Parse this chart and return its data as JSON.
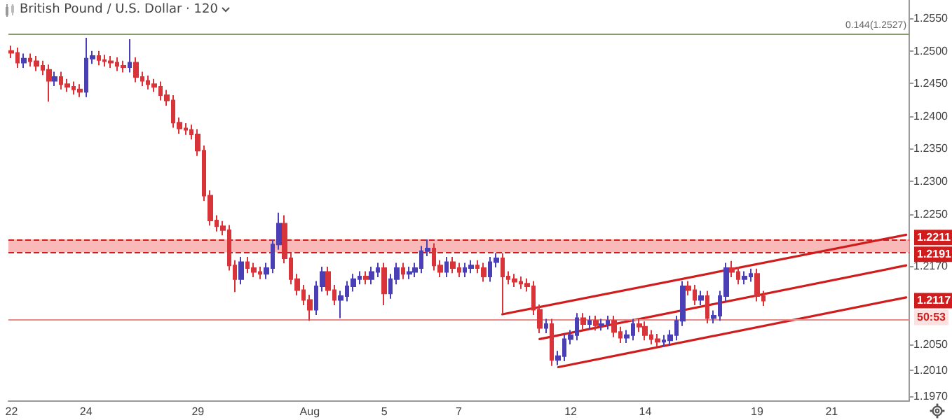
{
  "chart_data": {
    "type": "candlestick",
    "title": "British Pound / U.S. Dollar · 120",
    "categories": [
      "22",
      null,
      null,
      null,
      null,
      null,
      null,
      null,
      null,
      null,
      null,
      null,
      "24",
      null,
      null,
      null,
      null,
      null,
      null,
      null,
      null,
      null,
      null,
      null,
      null,
      null,
      null,
      null,
      null,
      null,
      "29",
      null,
      null,
      null,
      null,
      null,
      null,
      null,
      null,
      null,
      null,
      null,
      null,
      null,
      null,
      null,
      null,
      null,
      "Aug",
      null,
      null,
      null,
      null,
      null,
      null,
      null,
      null,
      null,
      null,
      null,
      "5",
      null,
      null,
      null,
      null,
      null,
      null,
      null,
      null,
      null,
      null,
      null,
      "7",
      null,
      null,
      null,
      null,
      null,
      null,
      null,
      null,
      null,
      null,
      null,
      null,
      null,
      null,
      null,
      null,
      null,
      "12",
      null,
      null,
      null,
      null,
      null,
      null,
      null,
      null,
      null,
      null,
      null,
      "14",
      null,
      null,
      null,
      null,
      null,
      null,
      null,
      null,
      null,
      null,
      null,
      null,
      null,
      null,
      null,
      null,
      null,
      "19",
      null,
      null,
      null,
      null,
      null,
      null,
      null,
      null,
      null,
      null,
      null,
      "21",
      null,
      null,
      null,
      null,
      null,
      null,
      null,
      null,
      null,
      null,
      null,
      null
    ],
    "series": [
      {
        "ohlc": [
          [
            1.25,
            1.2508,
            1.2489,
            1.2497
          ],
          [
            1.2497,
            1.2505,
            1.2474,
            1.2482
          ],
          [
            1.2482,
            1.2496,
            1.2474,
            1.2488
          ],
          [
            1.2488,
            1.2496,
            1.2476,
            1.2484
          ],
          [
            1.2484,
            1.2492,
            1.2469,
            1.2477
          ],
          [
            1.2477,
            1.2485,
            1.2463,
            1.2471
          ],
          [
            1.2471,
            1.2479,
            1.2422,
            1.2454
          ],
          [
            1.2454,
            1.2468,
            1.2446,
            1.246
          ],
          [
            1.246,
            1.2468,
            1.2441,
            1.2449
          ],
          [
            1.2449,
            1.2457,
            1.2437,
            1.2445
          ],
          [
            1.2445,
            1.2453,
            1.2433,
            1.2441
          ],
          [
            1.2441,
            1.2449,
            1.2429,
            1.2437
          ],
          [
            1.2437,
            1.252,
            1.2429,
            1.2488
          ],
          [
            1.2488,
            1.25,
            1.248,
            1.2492
          ],
          [
            1.2492,
            1.25,
            1.2478,
            1.2486
          ],
          [
            1.2486,
            1.2494,
            1.2476,
            1.2484
          ],
          [
            1.2484,
            1.2492,
            1.2474,
            1.2482
          ],
          [
            1.2482,
            1.249,
            1.2469,
            1.2477
          ],
          [
            1.2477,
            1.2485,
            1.2467,
            1.2475
          ],
          [
            1.2475,
            1.2518,
            1.2467,
            1.2482
          ],
          [
            1.2482,
            1.249,
            1.2452,
            1.246
          ],
          [
            1.246,
            1.2468,
            1.2446,
            1.2454
          ],
          [
            1.2454,
            1.2462,
            1.2441,
            1.2449
          ],
          [
            1.2449,
            1.2457,
            1.2437,
            1.2445
          ],
          [
            1.2445,
            1.2453,
            1.2424,
            1.2432
          ],
          [
            1.2432,
            1.244,
            1.2416,
            1.2424
          ],
          [
            1.2424,
            1.2432,
            1.2382,
            1.239
          ],
          [
            1.239,
            1.2398,
            1.2373,
            1.2381
          ],
          [
            1.2381,
            1.2389,
            1.2371,
            1.2379
          ],
          [
            1.2379,
            1.2387,
            1.2364,
            1.2372
          ],
          [
            1.2372,
            1.238,
            1.2339,
            1.2347
          ],
          [
            1.2347,
            1.2355,
            1.227,
            1.2278
          ],
          [
            1.2278,
            1.2286,
            1.2232,
            1.224
          ],
          [
            1.224,
            1.2248,
            1.2223,
            1.2231
          ],
          [
            1.2231,
            1.2239,
            1.2217,
            1.2225
          ],
          [
            1.2225,
            1.2233,
            1.2163,
            1.2171
          ],
          [
            1.2171,
            1.2179,
            1.213,
            1.215
          ],
          [
            1.215,
            1.2184,
            1.2142,
            1.2176
          ],
          [
            1.2176,
            1.2184,
            1.2159,
            1.2167
          ],
          [
            1.2167,
            1.2175,
            1.2153,
            1.2161
          ],
          [
            1.2161,
            1.2169,
            1.215,
            1.2158
          ],
          [
            1.2158,
            1.2175,
            1.215,
            1.2167
          ],
          [
            1.2167,
            1.2211,
            1.2159,
            1.2203
          ],
          [
            1.2203,
            1.2252,
            1.2195,
            1.2235
          ],
          [
            1.2235,
            1.2248,
            1.2174,
            1.2182
          ],
          [
            1.2182,
            1.219,
            1.2142,
            1.215
          ],
          [
            1.215,
            1.2158,
            1.2125,
            1.2133
          ],
          [
            1.2133,
            1.2141,
            1.211,
            1.2118
          ],
          [
            1.2118,
            1.2126,
            1.2086,
            1.2103
          ],
          [
            1.2103,
            1.2147,
            1.2095,
            1.2139
          ],
          [
            1.2139,
            1.2169,
            1.2131,
            1.2161
          ],
          [
            1.2161,
            1.2169,
            1.2125,
            1.2133
          ],
          [
            1.2133,
            1.2141,
            1.211,
            1.2118
          ],
          [
            1.2118,
            1.2132,
            1.209,
            1.2124
          ],
          [
            1.2124,
            1.2147,
            1.2116,
            1.2139
          ],
          [
            1.2139,
            1.2158,
            1.2131,
            1.215
          ],
          [
            1.215,
            1.2162,
            1.2142,
            1.2154
          ],
          [
            1.2154,
            1.2162,
            1.2142,
            1.215
          ],
          [
            1.215,
            1.2169,
            1.2142,
            1.2161
          ],
          [
            1.2161,
            1.2175,
            1.2153,
            1.2167
          ],
          [
            1.2167,
            1.2175,
            1.211,
            1.2128
          ],
          [
            1.2128,
            1.2158,
            1.212,
            1.215
          ],
          [
            1.215,
            1.2175,
            1.2142,
            1.2167
          ],
          [
            1.2167,
            1.2175,
            1.215,
            1.2158
          ],
          [
            1.2158,
            1.2169,
            1.215,
            1.2161
          ],
          [
            1.2161,
            1.2175,
            1.2153,
            1.2167
          ],
          [
            1.2167,
            1.2201,
            1.2159,
            1.2193
          ],
          [
            1.2193,
            1.2211,
            1.2185,
            1.2197
          ],
          [
            1.2197,
            1.2205,
            1.2163,
            1.2171
          ],
          [
            1.2171,
            1.2179,
            1.2153,
            1.2161
          ],
          [
            1.2161,
            1.2184,
            1.2153,
            1.2176
          ],
          [
            1.2176,
            1.2184,
            1.2159,
            1.2167
          ],
          [
            1.2167,
            1.2175,
            1.2153,
            1.2161
          ],
          [
            1.2161,
            1.2175,
            1.2153,
            1.2167
          ],
          [
            1.2167,
            1.2179,
            1.2159,
            1.2171
          ],
          [
            1.2171,
            1.2179,
            1.2159,
            1.2167
          ],
          [
            1.2167,
            1.2175,
            1.2146,
            1.2154
          ],
          [
            1.2154,
            1.2184,
            1.2146,
            1.2176
          ],
          [
            1.2176,
            1.219,
            1.2168,
            1.2182
          ],
          [
            1.2182,
            1.219,
            1.2096,
            1.2154
          ],
          [
            1.2154,
            1.2162,
            1.2142,
            1.215
          ],
          [
            1.215,
            1.2158,
            1.2138,
            1.2146
          ],
          [
            1.2146,
            1.2154,
            1.2135,
            1.2143
          ],
          [
            1.2143,
            1.2151,
            1.2131,
            1.2139
          ],
          [
            1.2139,
            1.2147,
            1.2095,
            1.2103
          ],
          [
            1.2103,
            1.2111,
            1.2067,
            1.2075
          ],
          [
            1.2075,
            1.2089,
            1.2067,
            1.2081
          ],
          [
            1.2081,
            1.2089,
            1.2017,
            1.2026
          ],
          [
            1.2026,
            1.204,
            1.2018,
            1.2032
          ],
          [
            1.2032,
            1.2066,
            1.2024,
            1.2058
          ],
          [
            1.2058,
            1.2072,
            1.205,
            1.2064
          ],
          [
            1.2064,
            1.2098,
            1.2056,
            1.209
          ],
          [
            1.209,
            1.2098,
            1.2073,
            1.2081
          ],
          [
            1.2081,
            1.2094,
            1.2073,
            1.2086
          ],
          [
            1.2086,
            1.2094,
            1.2071,
            1.2079
          ],
          [
            1.2079,
            1.2089,
            1.2071,
            1.2081
          ],
          [
            1.2081,
            1.2094,
            1.2073,
            1.2086
          ],
          [
            1.2086,
            1.2094,
            1.2061,
            1.2069
          ],
          [
            1.2069,
            1.2077,
            1.2052,
            1.206
          ],
          [
            1.206,
            1.2072,
            1.2052,
            1.2064
          ],
          [
            1.2064,
            1.2089,
            1.2056,
            1.2081
          ],
          [
            1.2081,
            1.2089,
            1.2069,
            1.2077
          ],
          [
            1.2077,
            1.2085,
            1.2056,
            1.2064
          ],
          [
            1.2064,
            1.2072,
            1.205,
            1.2058
          ],
          [
            1.2058,
            1.2066,
            1.2046,
            1.2054
          ],
          [
            1.2054,
            1.2064,
            1.2046,
            1.2056
          ],
          [
            1.2056,
            1.2072,
            1.2048,
            1.2064
          ],
          [
            1.2064,
            1.2094,
            1.2056,
            1.2086
          ],
          [
            1.2086,
            1.2147,
            1.2078,
            1.2139
          ],
          [
            1.2139,
            1.2147,
            1.2125,
            1.2133
          ],
          [
            1.2133,
            1.2141,
            1.211,
            1.2118
          ],
          [
            1.2118,
            1.2132,
            1.211,
            1.2124
          ],
          [
            1.2124,
            1.2132,
            1.2082,
            1.209
          ],
          [
            1.209,
            1.2102,
            1.2082,
            1.2094
          ],
          [
            1.2094,
            1.2132,
            1.2086,
            1.2124
          ],
          [
            1.2124,
            1.2175,
            1.2116,
            1.2167
          ],
          [
            1.2167,
            1.2178,
            1.2153,
            1.2161
          ],
          [
            1.2161,
            1.2169,
            1.2142,
            1.215
          ],
          [
            1.215,
            1.2162,
            1.2142,
            1.2154
          ],
          [
            1.2154,
            1.2166,
            1.2146,
            1.2158
          ],
          [
            1.2158,
            1.2166,
            1.2116,
            1.2124
          ],
          [
            1.2124,
            1.2132,
            1.2109,
            1.2117
          ],
          null,
          null,
          null,
          null,
          null,
          null,
          null,
          null,
          null,
          null,
          null,
          null,
          null,
          null,
          null,
          null,
          null,
          null,
          null,
          null,
          null,
          null,
          null
        ]
      },
      {
        "type": "line",
        "color": "#d01c1c",
        "values": [
          null,
          null,
          null,
          null,
          null,
          null,
          null,
          null,
          null,
          null,
          null,
          null,
          null,
          null,
          null,
          null,
          null,
          null,
          null,
          null,
          null,
          null,
          null,
          null,
          null,
          null,
          null,
          null,
          null,
          null,
          null,
          null,
          null,
          null,
          null,
          null,
          null,
          null,
          null,
          null,
          null,
          null,
          null,
          null,
          null,
          null,
          null,
          null,
          null,
          null,
          null,
          null,
          null,
          null,
          null,
          null,
          null,
          null,
          null,
          null,
          null,
          null,
          null,
          null,
          null,
          null,
          null,
          null,
          null,
          null,
          null,
          null,
          null,
          null,
          null,
          null,
          null,
          null,
          null,
          1.2096,
          null,
          null,
          null,
          null,
          null,
          null,
          null,
          null,
          null,
          null,
          null,
          null,
          null,
          null,
          null,
          null,
          null,
          null,
          null,
          null,
          null,
          null,
          null,
          null,
          null,
          null,
          null,
          null,
          null,
          null,
          null,
          null,
          null,
          null,
          null,
          null,
          null,
          null,
          null,
          null,
          null,
          null,
          null,
          null,
          null,
          null,
          null,
          null,
          null,
          null,
          null,
          null,
          null,
          null,
          null,
          null,
          null,
          null,
          null,
          null,
          null,
          null,
          null,
          null,
          1.2218
        ]
      },
      {
        "type": "line",
        "color": "#d01c1c",
        "values": [
          null,
          null,
          null,
          null,
          null,
          null,
          null,
          null,
          null,
          null,
          null,
          null,
          null,
          null,
          null,
          null,
          null,
          null,
          null,
          null,
          null,
          null,
          null,
          null,
          null,
          null,
          null,
          null,
          null,
          null,
          null,
          null,
          null,
          null,
          null,
          null,
          null,
          null,
          null,
          null,
          null,
          null,
          null,
          null,
          null,
          null,
          null,
          null,
          null,
          null,
          null,
          null,
          null,
          null,
          null,
          null,
          null,
          null,
          null,
          null,
          null,
          null,
          null,
          null,
          null,
          null,
          null,
          null,
          null,
          null,
          null,
          null,
          null,
          null,
          null,
          null,
          null,
          null,
          null,
          null,
          null,
          null,
          null,
          null,
          null,
          1.2058,
          null,
          null,
          null,
          null,
          null,
          null,
          null,
          null,
          null,
          null,
          null,
          null,
          null,
          null,
          null,
          null,
          null,
          null,
          null,
          null,
          null,
          null,
          null,
          null,
          null,
          null,
          null,
          null,
          null,
          null,
          null,
          null,
          null,
          null,
          null,
          null,
          null,
          null,
          null,
          null,
          null,
          null,
          null,
          null,
          null,
          null,
          null,
          null,
          null,
          null,
          null,
          null,
          null,
          null,
          null,
          null,
          null,
          null,
          1.2171
        ]
      },
      {
        "type": "line",
        "color": "#d01c1c",
        "values": [
          null,
          null,
          null,
          null,
          null,
          null,
          null,
          null,
          null,
          null,
          null,
          null,
          null,
          null,
          null,
          null,
          null,
          null,
          null,
          null,
          null,
          null,
          null,
          null,
          null,
          null,
          null,
          null,
          null,
          null,
          null,
          null,
          null,
          null,
          null,
          null,
          null,
          null,
          null,
          null,
          null,
          null,
          null,
          null,
          null,
          null,
          null,
          null,
          null,
          null,
          null,
          null,
          null,
          null,
          null,
          null,
          null,
          null,
          null,
          null,
          null,
          null,
          null,
          null,
          null,
          null,
          null,
          null,
          null,
          null,
          null,
          null,
          null,
          null,
          null,
          null,
          null,
          null,
          null,
          null,
          null,
          null,
          null,
          null,
          null,
          null,
          null,
          null,
          1.2015,
          null,
          null,
          null,
          null,
          null,
          null,
          null,
          null,
          null,
          null,
          null,
          null,
          null,
          null,
          null,
          null,
          null,
          null,
          null,
          null,
          null,
          null,
          null,
          null,
          null,
          null,
          null,
          null,
          null,
          null,
          null,
          null,
          null,
          null,
          null,
          null,
          null,
          null,
          null,
          null,
          null,
          null,
          null,
          null,
          null,
          null,
          null,
          null,
          null,
          null,
          null,
          null,
          null,
          null,
          null,
          1.2122
        ]
      }
    ],
    "ylim": [
      1.1964,
      1.2578
    ],
    "yticks": [
      {
        "value": 1.197,
        "label": "1.1970"
      },
      {
        "value": 1.201,
        "label": "1.2010"
      },
      {
        "value": 1.205,
        "label": "1.2050"
      },
      {
        "value": 1.217,
        "label": "1.2170"
      },
      {
        "value": 1.225,
        "label": "1.2250"
      },
      {
        "value": 1.23,
        "label": "1.2300"
      },
      {
        "value": 1.235,
        "label": "1.2350"
      },
      {
        "value": 1.24,
        "label": "1.2400"
      },
      {
        "value": 1.245,
        "label": "1.2450"
      },
      {
        "value": 1.25,
        "label": "1.2500"
      },
      {
        "value": 1.255,
        "label": "1.2550"
      }
    ],
    "ref_lines": [
      {
        "axis": "y",
        "value": 1.2527,
        "label": "0.144(1.2527)",
        "color": "#8a9a6e",
        "line_style": "solid"
      },
      {
        "axis": "y",
        "value": 1.2211,
        "label": "1.2211",
        "color": "#d01c1c",
        "line_style": "dashed"
      },
      {
        "axis": "y",
        "value": 1.2191,
        "label": "1.2191",
        "color": "#d01c1c",
        "line_style": "dashed"
      },
      {
        "axis": "y",
        "value": 1.2088,
        "color": "#e88a8a",
        "line_style": "solid"
      }
    ],
    "bands": [
      {
        "axis": "y",
        "from": 1.2191,
        "to": 1.2211,
        "color": "#f7a8a8"
      }
    ],
    "annotations": [
      "1.2117",
      "50:53"
    ],
    "marker": "none",
    "grid": false
  }
}
